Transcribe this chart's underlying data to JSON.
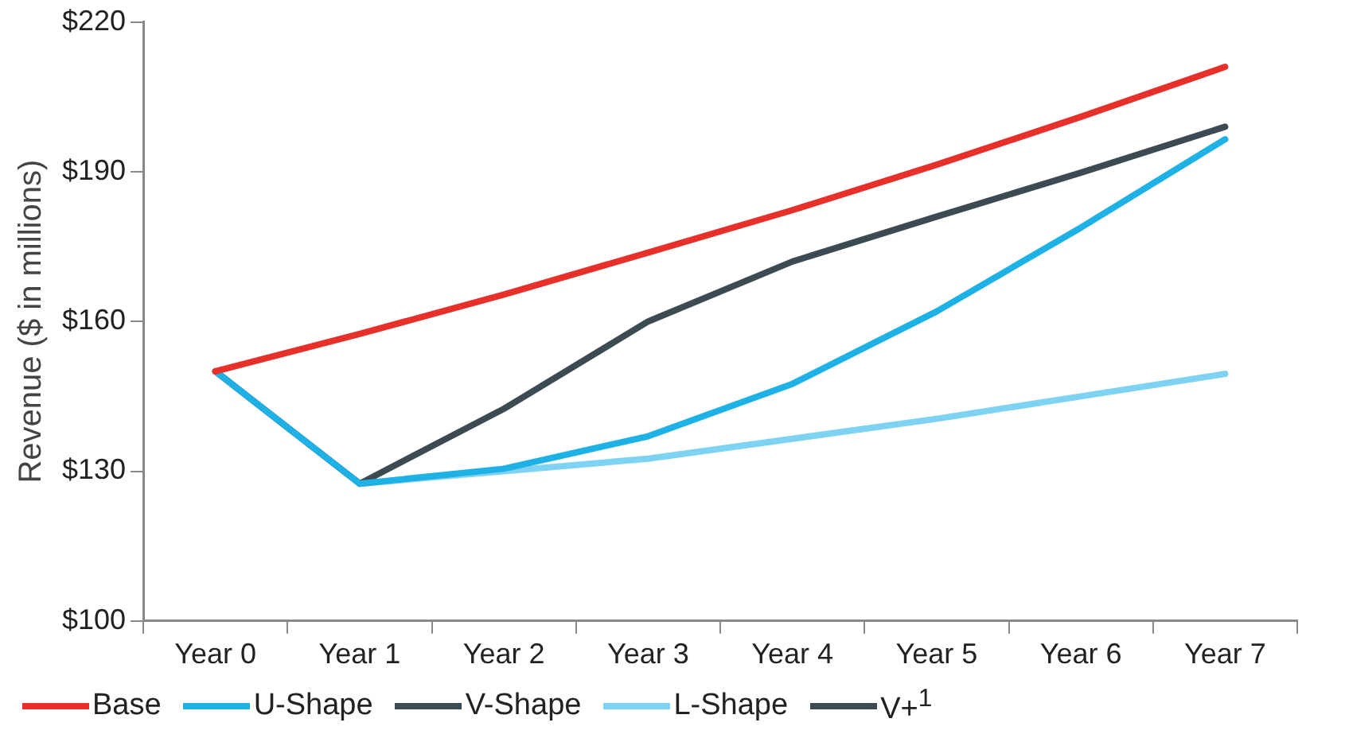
{
  "chart_data": {
    "type": "line",
    "ylabel": "Revenue ($ in millions)",
    "categories": [
      "Year 0",
      "Year 1",
      "Year 2",
      "Year 3",
      "Year 4",
      "Year 5",
      "Year 6",
      "Year 7"
    ],
    "series": [
      {
        "name": "Base",
        "color": "#e8302a",
        "values": [
          150,
          157.5,
          165.4,
          173.8,
          182.3,
          191.4,
          201,
          211
        ]
      },
      {
        "name": "U-Shape",
        "color": "#1eb1e6",
        "values": [
          150,
          127.5,
          130.5,
          137,
          147.5,
          162,
          178.8,
          196.5
        ]
      },
      {
        "name": "V-Shape",
        "color": "#3c4a54",
        "values": [
          150,
          127.5,
          142.5,
          160,
          172,
          181,
          189.8,
          199
        ]
      },
      {
        "name": "L-Shape",
        "color": "#7fd3f2",
        "values": [
          150,
          127.5,
          130,
          132.5,
          136.5,
          140.5,
          145,
          149.5
        ]
      },
      {
        "name": "V+$^{1}$",
        "color": "#3c4a54",
        "values": [
          null,
          null,
          null,
          null,
          null,
          null,
          null,
          null
        ]
      }
    ],
    "ylim": [
      100,
      220
    ],
    "yticks": [
      {
        "value": 100,
        "label": "$100"
      },
      {
        "value": 130,
        "label": "$130"
      },
      {
        "value": 160,
        "label": "$160"
      },
      {
        "value": 190,
        "label": "$190"
      },
      {
        "value": 220,
        "label": "$220"
      }
    ],
    "grid": false,
    "legend": "bottom",
    "marker": "none",
    "line_style": "solid"
  }
}
